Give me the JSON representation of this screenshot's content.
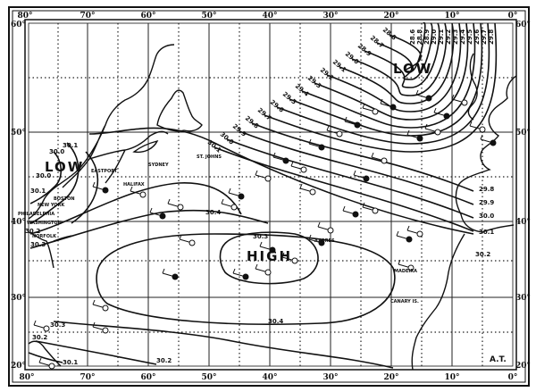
{
  "map": {
    "longitude_labels": [
      "80°",
      "70°",
      "60°",
      "50°",
      "40°",
      "30°",
      "20°",
      "10°",
      "0°"
    ],
    "latitude_labels": [
      "60°",
      "50°",
      "40°",
      "30°",
      "20°"
    ],
    "pressure_systems": {
      "low_north": "LOW",
      "low_west": "LOW",
      "high": "HIGH"
    },
    "places": {
      "eastport": "EASTPORT",
      "sydney": "SYDNEY",
      "halifax": "HALIFAX",
      "st_johns": "ST. JOHNS",
      "boston": "BOSTON",
      "new_york": "NEW YORK",
      "philadelphia": "PHILADELPHIA",
      "washington": "WASHINGTON",
      "norfolk": "NORFOLK",
      "azores": "AZORES",
      "madeira": "MADEIRA",
      "canary": "CANARY IS."
    },
    "isobar_labels": {
      "west": [
        "30.1",
        "30.0",
        "30.0",
        "30.1",
        "30.2",
        "30.3"
      ],
      "central": [
        "30.4",
        "30.3",
        "30.4"
      ],
      "southwest": [
        "30.3",
        "30.2",
        "30.1",
        "30.2"
      ],
      "east": [
        "29.8",
        "29.9",
        "30.0",
        "30.1",
        "30.2"
      ],
      "north_diagonal": [
        "30.1",
        "30.0",
        "29.9",
        "29.8",
        "29.7",
        "29.6",
        "29.5",
        "29.4",
        "29.3",
        "29.2",
        "29.1",
        "29.0",
        "28.9",
        "28.7",
        "28.8"
      ],
      "north_top": [
        "29.8",
        "29.7",
        "29.6",
        "29.5",
        "29.4",
        "29.3",
        "29.2",
        "29.1",
        "29.0",
        "28.9",
        "28.8",
        "28.6"
      ]
    },
    "signature": "A.T."
  }
}
